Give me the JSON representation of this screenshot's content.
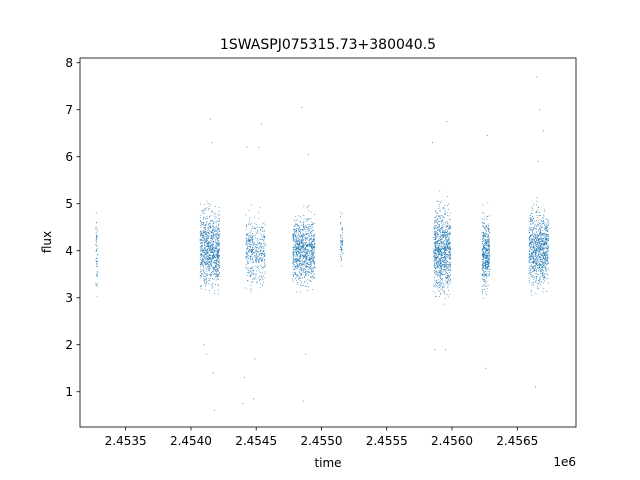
{
  "chart_data": {
    "type": "scatter",
    "title": "1SWASPJ075315.73+380040.5",
    "xlabel": "time",
    "ylabel": "flux",
    "x_offset_label": "1e6",
    "xlim": [
      2453150,
      2456950
    ],
    "ylim": [
      0.25,
      8.1
    ],
    "xticks": [
      2453500,
      2454000,
      2454500,
      2455000,
      2455500,
      2456000,
      2456500
    ],
    "xtick_labels": [
      "2.4535",
      "2.4540",
      "2.4545",
      "2.4550",
      "2.4555",
      "2.4560",
      "2.4565"
    ],
    "yticks": [
      1,
      2,
      3,
      4,
      5,
      6,
      7,
      8
    ],
    "ytick_labels": [
      "1",
      "2",
      "3",
      "4",
      "5",
      "6",
      "7",
      "8"
    ],
    "grid": false,
    "marker_color": "#1f77b4",
    "series": [
      {
        "observing_seasons": [
          {
            "x_start": 2453270,
            "x_end": 2453285,
            "y_min": 2.6,
            "y_max": 5.2,
            "density": "sparse"
          },
          {
            "x_start": 2454070,
            "x_end": 2454220,
            "y_min": 2.8,
            "y_max": 5.3,
            "density": "dense"
          },
          {
            "x_start": 2454420,
            "x_end": 2454570,
            "y_min": 2.9,
            "y_max": 5.1,
            "density": "medium"
          },
          {
            "x_start": 2454780,
            "x_end": 2454950,
            "y_min": 2.9,
            "y_max": 5.1,
            "density": "dense"
          },
          {
            "x_start": 2455145,
            "x_end": 2455165,
            "y_min": 3.3,
            "y_max": 5.1,
            "density": "sparse"
          },
          {
            "x_start": 2455860,
            "x_end": 2455990,
            "y_min": 2.6,
            "y_max": 5.4,
            "density": "dense"
          },
          {
            "x_start": 2456230,
            "x_end": 2456290,
            "y_min": 2.8,
            "y_max": 5.1,
            "density": "medium"
          },
          {
            "x_start": 2456590,
            "x_end": 2456740,
            "y_min": 2.8,
            "y_max": 5.3,
            "density": "dense"
          }
        ],
        "outliers": [
          {
            "x": 2454150,
            "y": 6.8
          },
          {
            "x": 2454160,
            "y": 6.3
          },
          {
            "x": 2454180,
            "y": 0.6
          },
          {
            "x": 2454170,
            "y": 1.4
          },
          {
            "x": 2454120,
            "y": 1.8
          },
          {
            "x": 2454100,
            "y": 2.0
          },
          {
            "x": 2454400,
            "y": 0.75
          },
          {
            "x": 2454410,
            "y": 1.3
          },
          {
            "x": 2454430,
            "y": 6.2
          },
          {
            "x": 2454480,
            "y": 0.85
          },
          {
            "x": 2454490,
            "y": 1.7
          },
          {
            "x": 2454540,
            "y": 6.7
          },
          {
            "x": 2454520,
            "y": 6.2
          },
          {
            "x": 2454850,
            "y": 7.05
          },
          {
            "x": 2454860,
            "y": 0.8
          },
          {
            "x": 2454900,
            "y": 6.05
          },
          {
            "x": 2454880,
            "y": 1.8
          },
          {
            "x": 2455850,
            "y": 6.3
          },
          {
            "x": 2455870,
            "y": 1.9
          },
          {
            "x": 2455960,
            "y": 6.75
          },
          {
            "x": 2455950,
            "y": 1.9
          },
          {
            "x": 2456270,
            "y": 6.45
          },
          {
            "x": 2456260,
            "y": 1.5
          },
          {
            "x": 2456650,
            "y": 7.7
          },
          {
            "x": 2456670,
            "y": 7.0
          },
          {
            "x": 2456700,
            "y": 6.55
          },
          {
            "x": 2456640,
            "y": 1.1
          },
          {
            "x": 2456660,
            "y": 5.9
          }
        ]
      }
    ]
  }
}
